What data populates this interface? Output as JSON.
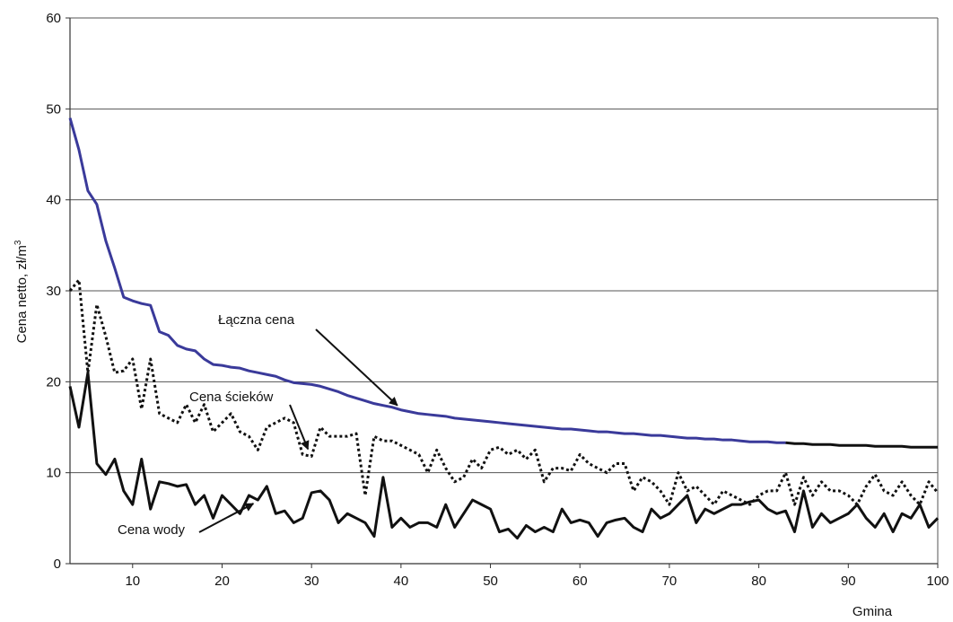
{
  "chart_data": {
    "type": "line",
    "title": "",
    "xlabel": "Gmina",
    "ylabel": "Cena netto, zł/m",
    "ylabel_superscript": "3",
    "xlim": [
      3,
      100
    ],
    "ylim": [
      0,
      60
    ],
    "x_ticks": [
      10,
      20,
      30,
      40,
      50,
      60,
      70,
      80,
      90,
      100
    ],
    "y_ticks": [
      0,
      10,
      20,
      30,
      40,
      50,
      60
    ],
    "grid": "horizontal",
    "legend": "none",
    "x": [
      3,
      4,
      5,
      6,
      7,
      8,
      9,
      10,
      11,
      12,
      13,
      14,
      15,
      16,
      17,
      18,
      19,
      20,
      21,
      22,
      23,
      24,
      25,
      26,
      27,
      28,
      29,
      30,
      31,
      32,
      33,
      34,
      35,
      36,
      37,
      38,
      39,
      40,
      41,
      42,
      43,
      44,
      45,
      46,
      47,
      48,
      49,
      50,
      51,
      52,
      53,
      54,
      55,
      56,
      57,
      58,
      59,
      60,
      61,
      62,
      63,
      64,
      65,
      66,
      67,
      68,
      69,
      70,
      71,
      72,
      73,
      74,
      75,
      76,
      77,
      78,
      79,
      80,
      81,
      82,
      83,
      84,
      85,
      86,
      87,
      88,
      89,
      90,
      91,
      92,
      93,
      94,
      95,
      96,
      97,
      98,
      99,
      100
    ],
    "series": [
      {
        "name": "Łączna cena",
        "color": "#3a3a9a",
        "tail_color": "#111111",
        "tail_from_x": 83,
        "style": "solid",
        "values": [
          49.0,
          45.5,
          41.0,
          39.5,
          35.5,
          32.5,
          29.3,
          28.9,
          28.6,
          28.4,
          25.5,
          25.1,
          24.0,
          23.6,
          23.4,
          22.5,
          21.9,
          21.8,
          21.6,
          21.5,
          21.2,
          21.0,
          20.8,
          20.6,
          20.2,
          19.9,
          19.8,
          19.7,
          19.5,
          19.2,
          18.9,
          18.5,
          18.2,
          17.9,
          17.6,
          17.4,
          17.2,
          16.9,
          16.7,
          16.5,
          16.4,
          16.3,
          16.2,
          16.0,
          15.9,
          15.8,
          15.7,
          15.6,
          15.5,
          15.4,
          15.3,
          15.2,
          15.1,
          15.0,
          14.9,
          14.8,
          14.8,
          14.7,
          14.6,
          14.5,
          14.5,
          14.4,
          14.3,
          14.3,
          14.2,
          14.1,
          14.1,
          14.0,
          13.9,
          13.8,
          13.8,
          13.7,
          13.7,
          13.6,
          13.6,
          13.5,
          13.4,
          13.4,
          13.4,
          13.3,
          13.3,
          13.2,
          13.2,
          13.1,
          13.1,
          13.1,
          13.0,
          13.0,
          13.0,
          13.0,
          12.9,
          12.9,
          12.9,
          12.9,
          12.8,
          12.8,
          12.8,
          12.8
        ]
      },
      {
        "name": "Cena ścieków",
        "color": "#111111",
        "style": "dotted",
        "values": [
          30.0,
          31.2,
          21.0,
          28.5,
          25.0,
          21.0,
          21.2,
          22.5,
          17.0,
          22.5,
          16.5,
          16.0,
          15.5,
          17.5,
          15.5,
          17.5,
          14.5,
          15.5,
          16.5,
          14.5,
          14.0,
          12.5,
          15.0,
          15.5,
          16.0,
          15.5,
          12.0,
          11.8,
          15.0,
          14.0,
          14.0,
          14.0,
          14.3,
          7.5,
          14.0,
          13.5,
          13.5,
          13.0,
          12.5,
          12.0,
          10.0,
          12.5,
          10.5,
          9.0,
          9.5,
          11.5,
          10.5,
          12.5,
          12.8,
          12.0,
          12.5,
          11.5,
          12.5,
          9.0,
          10.5,
          10.5,
          10.2,
          12.0,
          11.0,
          10.5,
          10.0,
          11.0,
          11.0,
          8.0,
          9.5,
          9.0,
          8.0,
          6.5,
          10.0,
          8.0,
          8.5,
          7.5,
          6.5,
          8.0,
          7.5,
          7.0,
          6.5,
          7.5,
          8.0,
          8.0,
          10.0,
          6.5,
          9.5,
          7.5,
          9.0,
          8.0,
          8.0,
          7.5,
          6.5,
          8.5,
          9.8,
          8.0,
          7.5,
          9.0,
          7.5,
          6.5,
          9.0,
          7.8
        ]
      },
      {
        "name": "Cena wody",
        "color": "#111111",
        "style": "solid",
        "values": [
          19.5,
          15.0,
          21.0,
          11.0,
          9.8,
          11.5,
          8.0,
          6.5,
          11.5,
          6.0,
          9.0,
          8.8,
          8.5,
          8.7,
          6.5,
          7.5,
          5.0,
          7.5,
          6.5,
          5.5,
          7.5,
          7.0,
          8.5,
          5.5,
          5.8,
          4.5,
          5.0,
          7.8,
          8.0,
          7.0,
          4.5,
          5.5,
          5.0,
          4.5,
          3.0,
          9.5,
          4.0,
          5.0,
          4.0,
          4.5,
          4.5,
          4.0,
          6.5,
          4.0,
          5.5,
          7.0,
          6.5,
          6.0,
          3.5,
          3.8,
          2.8,
          4.2,
          3.5,
          4.0,
          3.5,
          6.0,
          4.5,
          4.8,
          4.5,
          3.0,
          4.5,
          4.8,
          5.0,
          4.0,
          3.5,
          6.0,
          5.0,
          5.5,
          6.5,
          7.5,
          4.5,
          6.0,
          5.5,
          6.0,
          6.5,
          6.5,
          6.8,
          7.0,
          6.0,
          5.5,
          5.8,
          3.5,
          8.0,
          4.0,
          5.5,
          4.5,
          5.0,
          5.5,
          6.5,
          5.0,
          4.0,
          5.5,
          3.5,
          5.5,
          5.0,
          6.5,
          4.0,
          5.0
        ]
      }
    ],
    "annotations": [
      {
        "text": "Łączna cena",
        "points_to_series": "Łączna cena",
        "points_to_x": 40
      },
      {
        "text": "Cena ścieków",
        "points_to_series": "Cena ścieków",
        "points_to_x": 30
      },
      {
        "text": "Cena wody",
        "points_to_series": "Cena wody",
        "points_to_x": 24
      }
    ]
  }
}
